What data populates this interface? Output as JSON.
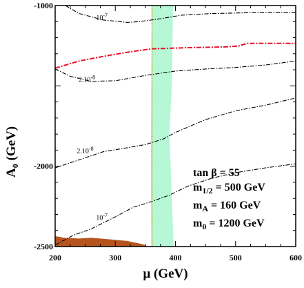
{
  "chart_data": {
    "type": "line",
    "xlabel": "μ (GeV)",
    "ylabel_main": "A",
    "ylabel_sub": "0",
    "ylabel_unit": " (GeV)",
    "xlim": [
      200,
      600
    ],
    "ylim": [
      -2500,
      -1000
    ],
    "xticks": [
      200,
      300,
      400,
      500,
      600
    ],
    "xtick_labels": [
      "200",
      "300",
      "400",
      "500",
      "600"
    ],
    "yticks_major": [
      -2500,
      -2000,
      -1000
    ],
    "ytick_labels": [
      "-2500",
      "-2000",
      "-1000"
    ],
    "contours": [
      {
        "label_base": "10",
        "label_exp": "-7",
        "label_at": [
          268,
          -1090
        ],
        "points": [
          [
            217,
            -1000
          ],
          [
            240,
            -1050
          ],
          [
            280,
            -1090
          ],
          [
            320,
            -1105
          ],
          [
            340,
            -1100
          ],
          [
            370,
            -1085
          ],
          [
            410,
            -1060
          ],
          [
            460,
            -1050
          ],
          [
            520,
            -1045
          ],
          [
            600,
            -1045
          ]
        ]
      },
      {
        "label_base": "2.10",
        "label_exp": "-8",
        "label_at": [
          239,
          -1475
        ],
        "points": [
          [
            200,
            -1395
          ],
          [
            225,
            -1440
          ],
          [
            260,
            -1472
          ],
          [
            300,
            -1468
          ],
          [
            350,
            -1435
          ],
          [
            400,
            -1408
          ],
          [
            450,
            -1395
          ],
          [
            500,
            -1385
          ],
          [
            550,
            -1370
          ],
          [
            600,
            -1345
          ]
        ]
      },
      {
        "label_base": "2.10",
        "label_exp": "-8",
        "label_at": [
          236,
          -1920
        ],
        "points": [
          [
            200,
            -2010
          ],
          [
            240,
            -1960
          ],
          [
            280,
            -1910
          ],
          [
            320,
            -1885
          ],
          [
            350,
            -1865
          ],
          [
            380,
            -1830
          ],
          [
            400,
            -1790
          ],
          [
            450,
            -1710
          ],
          [
            500,
            -1655
          ],
          [
            550,
            -1620
          ],
          [
            600,
            -1575
          ]
        ]
      },
      {
        "label_base": "10",
        "label_exp": "-7",
        "label_at": [
          268,
          -2335
        ],
        "points": [
          [
            200,
            -2490
          ],
          [
            230,
            -2430
          ],
          [
            260,
            -2390
          ],
          [
            300,
            -2315
          ],
          [
            330,
            -2255
          ],
          [
            360,
            -2220
          ],
          [
            390,
            -2180
          ],
          [
            420,
            -2125
          ],
          [
            460,
            -2075
          ],
          [
            500,
            -2040
          ],
          [
            550,
            -2010
          ],
          [
            600,
            -1985
          ]
        ]
      }
    ],
    "red_line": {
      "points": [
        [
          200,
          -1390
        ],
        [
          240,
          -1345
        ],
        [
          290,
          -1310
        ],
        [
          330,
          -1285
        ],
        [
          360,
          -1270
        ],
        [
          420,
          -1262
        ],
        [
          480,
          -1258
        ],
        [
          505,
          -1252
        ],
        [
          520,
          -1235
        ],
        [
          560,
          -1235
        ],
        [
          600,
          -1235
        ]
      ]
    },
    "orange_line": {
      "points": [
        [
          361,
          -1000
        ],
        [
          361,
          -2500
        ]
      ]
    },
    "green_band": {
      "left": [
        [
          361,
          -1000
        ],
        [
          360,
          -1500
        ],
        [
          359,
          -2000
        ],
        [
          360,
          -2500
        ]
      ],
      "right": [
        [
          396,
          -1000
        ],
        [
          394,
          -1500
        ],
        [
          390,
          -1800
        ],
        [
          393,
          -2100
        ],
        [
          397,
          -2500
        ]
      ]
    },
    "brown_region": {
      "points": [
        [
          200,
          -2500
        ],
        [
          200,
          -2435
        ],
        [
          215,
          -2445
        ],
        [
          240,
          -2450
        ],
        [
          260,
          -2445
        ],
        [
          290,
          -2455
        ],
        [
          320,
          -2465
        ],
        [
          345,
          -2485
        ],
        [
          355,
          -2500
        ]
      ]
    },
    "colors": {
      "contour": "#000000",
      "red_line": "#e8102a",
      "orange_line": "#d4a017",
      "green_band": "#b6f7d6",
      "brown_region": "#b7541e"
    }
  },
  "params": {
    "line1": "tan β = 55",
    "line2_main": "m",
    "line2_sub": "1/2",
    "line2_rest": " = 500 GeV",
    "line3_main": "m",
    "line3_sub": "A",
    "line3_rest": " = 160 GeV",
    "line4_main": "m",
    "line4_sub": "0",
    "line4_rest": " = 1200 GeV"
  }
}
